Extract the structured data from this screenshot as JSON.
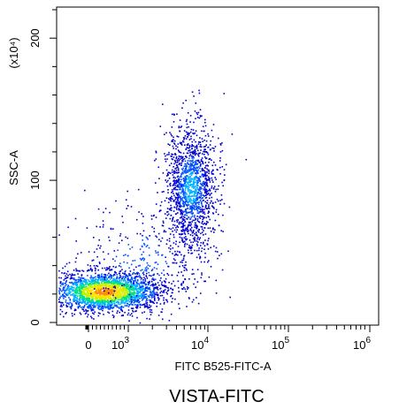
{
  "chart_data": {
    "type": "scatter",
    "subtype": "flow-cytometry density dot plot",
    "title": "VISTA-FITC",
    "xlabel": "FITC B525-FITC-A",
    "ylabel": "SSC-A",
    "y_scale_note": "(x10⁴)",
    "x_scale": "biexponential",
    "y_scale": "linear",
    "ylim": [
      0,
      220
    ],
    "x_ticks": [
      {
        "value": 0,
        "label": "0"
      },
      {
        "value": 1000,
        "label": "10",
        "exp": "3"
      },
      {
        "value": 10000,
        "label": "10",
        "exp": "4"
      },
      {
        "value": 100000,
        "label": "10",
        "exp": "5"
      },
      {
        "value": 1000000,
        "label": "10",
        "exp": "6"
      }
    ],
    "y_ticks": [
      {
        "value": 0,
        "label": "0"
      },
      {
        "value": 100,
        "label": "100"
      },
      {
        "value": 200,
        "label": "200"
      }
    ],
    "populations": [
      {
        "center_x": 400,
        "center_y": 22,
        "spread_x_decades": 0.35,
        "spread_y": 7,
        "count": 2400
      },
      {
        "center_x": 6000,
        "center_y": 95,
        "spread_x_decades": 0.16,
        "spread_y": 22,
        "count": 1500
      },
      {
        "center_x": 1500,
        "center_y": 45,
        "spread_x_decades": 0.45,
        "spread_y": 20,
        "count": 350
      }
    ],
    "density_colors": [
      "#0000cc",
      "#0050ff",
      "#00b0ff",
      "#00e080",
      "#c8f000",
      "#ffe000",
      "#ff8c00"
    ]
  }
}
